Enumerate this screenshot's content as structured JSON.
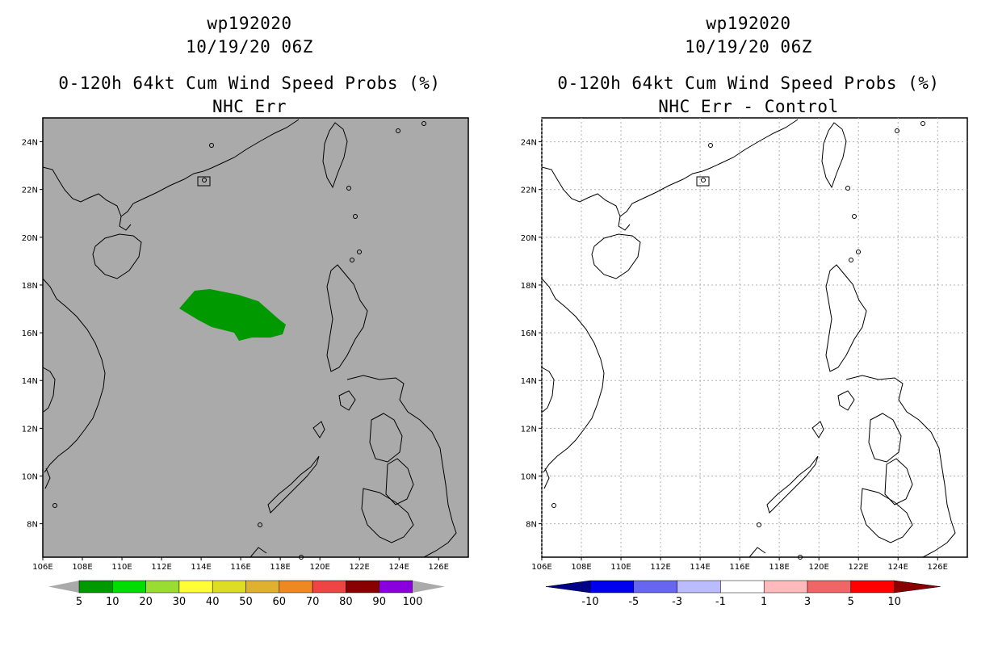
{
  "storm_id": "wp192020",
  "datetime": "10/19/20 06Z",
  "panels": [
    {
      "id": "left",
      "title_line1": "wp192020",
      "title_line2": "10/19/20 06Z",
      "title_line3": "0-120h 64kt Cum Wind Speed Probs (%)",
      "title_line4": "NHC Err",
      "background_color": "#aaaaaa",
      "field_color": "#009900",
      "colorbar": {
        "colors": [
          "#009900",
          "#00dd00",
          "#99dd33",
          "#ffff33",
          "#dddd22",
          "#e0b030",
          "#ee8822",
          "#ee4444",
          "#880000",
          "#8800dd"
        ],
        "labels": [
          "5",
          "10",
          "20",
          "30",
          "40",
          "50",
          "60",
          "70",
          "80",
          "90",
          "100"
        ]
      }
    },
    {
      "id": "right",
      "title_line1": "wp192020",
      "title_line2": "10/19/20 06Z",
      "title_line3": "0-120h 64kt Cum Wind Speed Probs (%)",
      "title_line4": "NHC Err - Control",
      "background_color": "#ffffff",
      "colorbar": {
        "colors": [
          "#000088",
          "#0000ee",
          "#6666ee",
          "#bbbbff",
          "#ffffff",
          "#ffbbbb",
          "#ee6666",
          "#ff0000",
          "#880000"
        ],
        "labels": [
          "-10",
          "-5",
          "-3",
          "-1",
          "1",
          "3",
          "5",
          "10"
        ]
      }
    }
  ],
  "axes": {
    "x_ticks": [
      "106E",
      "108E",
      "110E",
      "112E",
      "114E",
      "116E",
      "118E",
      "120E",
      "122E",
      "124E",
      "126E"
    ],
    "y_ticks": [
      "8N",
      "10N",
      "12N",
      "14N",
      "16N",
      "18N",
      "20N",
      "22N",
      "24N"
    ],
    "lon_range": [
      106,
      127.5
    ],
    "lat_range": [
      6.6,
      25
    ]
  }
}
